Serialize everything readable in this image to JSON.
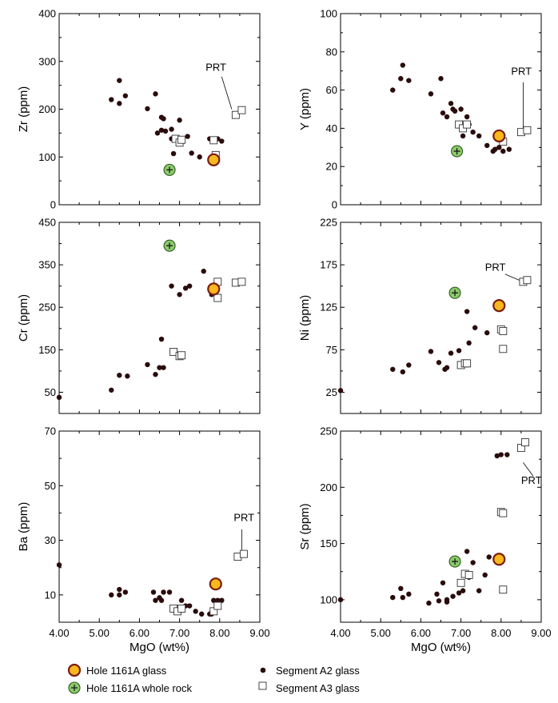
{
  "legend": [
    {
      "key": "glass",
      "label": "Hole 1161A glass"
    },
    {
      "key": "whole_rock",
      "label": "Hole 1161A whole rock"
    },
    {
      "key": "a2",
      "label": "Segment A2 glass"
    },
    {
      "key": "a3",
      "label": "Segment A3 glass"
    }
  ],
  "colors": {
    "glass_fill": "#f9b81b",
    "glass_stroke": "#7a1d0e",
    "whole_rock_fill": "#8ccb6a",
    "whole_rock_stroke": "#2d5a1e",
    "a2": "#2a0b0b",
    "a3": "#ffffff"
  },
  "chart_data": [
    {
      "type": "scatter",
      "xlabel": "",
      "ylabel": "Zr (ppm)",
      "xlim": [
        4.0,
        9.0
      ],
      "ylim": [
        0,
        400
      ],
      "xticks": [],
      "yticks": [
        "0",
        "100",
        "200",
        "300",
        "400"
      ],
      "annotation": {
        "text": "PRT",
        "x": 7.65,
        "y": 280,
        "line": [
          [
            8.05,
            268
          ],
          [
            8.3,
            200
          ]
        ]
      },
      "series": [
        {
          "key": "a2",
          "points": [
            [
              5.3,
              220
            ],
            [
              5.5,
              260
            ],
            [
              5.5,
              212
            ],
            [
              5.65,
              228
            ],
            [
              6.2,
              201
            ],
            [
              6.4,
              232
            ],
            [
              6.45,
              150
            ],
            [
              6.55,
              183
            ],
            [
              6.6,
              180
            ],
            [
              6.55,
              156
            ],
            [
              6.65,
              154
            ],
            [
              6.8,
              158
            ],
            [
              6.8,
              138
            ],
            [
              6.85,
              107
            ],
            [
              7.0,
              177
            ],
            [
              7.05,
              132
            ],
            [
              7.2,
              143
            ],
            [
              7.3,
              108
            ],
            [
              7.5,
              100
            ],
            [
              7.75,
              138
            ],
            [
              7.95,
              138
            ],
            [
              8.05,
              133
            ]
          ]
        },
        {
          "key": "a3",
          "points": [
            [
              6.9,
              138
            ],
            [
              7.0,
              130
            ],
            [
              7.05,
              136
            ],
            [
              7.85,
              135
            ],
            [
              7.9,
              104
            ],
            [
              8.4,
              188
            ],
            [
              8.55,
              198
            ]
          ]
        },
        {
          "key": "glass",
          "points": [
            [
              7.85,
              94
            ]
          ]
        },
        {
          "key": "whole_rock",
          "points": [
            [
              6.75,
              73
            ]
          ]
        }
      ]
    },
    {
      "type": "scatter",
      "xlabel": "",
      "ylabel": "Y (ppm)",
      "xlim": [
        4.0,
        9.0
      ],
      "ylim": [
        0,
        100
      ],
      "xticks": [],
      "yticks": [
        "0",
        "20",
        "40",
        "60",
        "80",
        "100"
      ],
      "annotation": {
        "text": "PRT",
        "x": 8.25,
        "y": 68,
        "line": [
          [
            8.55,
            64
          ],
          [
            8.55,
            40
          ]
        ]
      },
      "series": [
        {
          "key": "a2",
          "points": [
            [
              5.3,
              60
            ],
            [
              5.5,
              66
            ],
            [
              5.55,
              73
            ],
            [
              5.7,
              65
            ],
            [
              6.25,
              58
            ],
            [
              6.5,
              66
            ],
            [
              6.55,
              48
            ],
            [
              6.65,
              46
            ],
            [
              6.75,
              53
            ],
            [
              6.8,
              50
            ],
            [
              6.85,
              49
            ],
            [
              6.95,
              42
            ],
            [
              7.0,
              50
            ],
            [
              7.05,
              36
            ],
            [
              7.15,
              46
            ],
            [
              7.2,
              42
            ],
            [
              7.3,
              38
            ],
            [
              7.45,
              36
            ],
            [
              7.65,
              31
            ],
            [
              7.8,
              28
            ],
            [
              7.85,
              29
            ],
            [
              7.95,
              30
            ],
            [
              8.05,
              28
            ],
            [
              8.2,
              29
            ]
          ]
        },
        {
          "key": "a3",
          "points": [
            [
              6.95,
              42
            ],
            [
              7.05,
              40
            ],
            [
              7.15,
              42
            ],
            [
              8.05,
              33
            ],
            [
              8.5,
              38
            ],
            [
              8.65,
              39
            ]
          ]
        },
        {
          "key": "glass",
          "points": [
            [
              7.95,
              36
            ]
          ]
        },
        {
          "key": "whole_rock",
          "points": [
            [
              6.9,
              28
            ]
          ]
        }
      ]
    },
    {
      "type": "scatter",
      "xlabel": "",
      "ylabel": "Cr (ppm)",
      "xlim": [
        4.0,
        9.0
      ],
      "ylim": [
        0,
        450
      ],
      "xticks": [],
      "yticks": [
        "50",
        "150",
        "250",
        "350",
        "450"
      ],
      "series": [
        {
          "key": "a2",
          "points": [
            [
              4.0,
              38
            ],
            [
              5.3,
              55
            ],
            [
              5.5,
              90
            ],
            [
              5.7,
              88
            ],
            [
              6.2,
              115
            ],
            [
              6.4,
              92
            ],
            [
              6.5,
              108
            ],
            [
              6.6,
              108
            ],
            [
              6.55,
              175
            ],
            [
              6.8,
              300
            ],
            [
              7.0,
              280
            ],
            [
              7.15,
              295
            ],
            [
              7.25,
              300
            ],
            [
              7.6,
              335
            ],
            [
              7.8,
              280
            ]
          ]
        },
        {
          "key": "a3",
          "points": [
            [
              6.85,
              145
            ],
            [
              7.0,
              135
            ],
            [
              7.05,
              137
            ],
            [
              7.95,
              310
            ],
            [
              7.95,
              272
            ],
            [
              8.4,
              308
            ],
            [
              8.55,
              310
            ]
          ]
        },
        {
          "key": "glass",
          "points": [
            [
              7.85,
              293
            ]
          ]
        },
        {
          "key": "whole_rock",
          "points": [
            [
              6.75,
              395
            ]
          ]
        }
      ]
    },
    {
      "type": "scatter",
      "xlabel": "",
      "ylabel": "Ni (ppm)",
      "xlim": [
        4.0,
        9.0
      ],
      "ylim": [
        0,
        225
      ],
      "xticks": [],
      "yticks": [
        "25",
        "75",
        "125",
        "175",
        "225"
      ],
      "annotation": {
        "text": "PRT",
        "x": 7.6,
        "y": 168,
        "line": [
          [
            8.1,
            164
          ],
          [
            8.55,
            155
          ]
        ]
      },
      "series": [
        {
          "key": "a2",
          "points": [
            [
              4.0,
              27
            ],
            [
              5.3,
              52
            ],
            [
              5.55,
              49
            ],
            [
              5.7,
              57
            ],
            [
              6.25,
              73
            ],
            [
              6.45,
              60
            ],
            [
              6.6,
              52
            ],
            [
              6.65,
              54
            ],
            [
              6.75,
              71
            ],
            [
              6.95,
              74
            ],
            [
              7.15,
              120
            ],
            [
              7.2,
              83
            ],
            [
              7.35,
              101
            ],
            [
              7.65,
              95
            ]
          ]
        },
        {
          "key": "a3",
          "points": [
            [
              7.0,
              57
            ],
            [
              7.1,
              59
            ],
            [
              7.15,
              59
            ],
            [
              8.0,
              99
            ],
            [
              8.05,
              97
            ],
            [
              8.05,
              76
            ],
            [
              8.55,
              155
            ],
            [
              8.65,
              157
            ]
          ]
        },
        {
          "key": "glass",
          "points": [
            [
              7.95,
              127
            ]
          ]
        },
        {
          "key": "whole_rock",
          "points": [
            [
              6.85,
              142
            ]
          ]
        }
      ]
    },
    {
      "type": "scatter",
      "xlabel": "MgO (wt%)",
      "ylabel": "Ba (ppm)",
      "xlim": [
        4.0,
        9.0
      ],
      "ylim": [
        0,
        70
      ],
      "xticks": [
        "4.00",
        "5.00",
        "6.00",
        "7.00",
        "8.00",
        "9.00"
      ],
      "yticks": [
        "10",
        "30",
        "50",
        "70"
      ],
      "annotation": {
        "text": "PRT",
        "x": 8.35,
        "y": 37,
        "line": [
          [
            8.55,
            34
          ],
          [
            8.55,
            26
          ]
        ]
      },
      "series": [
        {
          "key": "a2",
          "points": [
            [
              4.0,
              21
            ],
            [
              5.3,
              10
            ],
            [
              5.5,
              12
            ],
            [
              5.5,
              10
            ],
            [
              5.65,
              11
            ],
            [
              6.35,
              11
            ],
            [
              6.4,
              8
            ],
            [
              6.5,
              9
            ],
            [
              6.6,
              11
            ],
            [
              6.55,
              8
            ],
            [
              6.75,
              11
            ],
            [
              6.9,
              5
            ],
            [
              7.05,
              8
            ],
            [
              7.15,
              6
            ],
            [
              7.25,
              6
            ],
            [
              7.4,
              4
            ],
            [
              7.55,
              3
            ],
            [
              7.75,
              3
            ],
            [
              7.8,
              3
            ],
            [
              7.85,
              8
            ],
            [
              7.95,
              8
            ],
            [
              8.05,
              8
            ]
          ]
        },
        {
          "key": "a3",
          "points": [
            [
              6.85,
              5
            ],
            [
              6.95,
              4
            ],
            [
              7.05,
              5
            ],
            [
              7.85,
              4
            ],
            [
              7.95,
              6
            ],
            [
              8.45,
              24
            ],
            [
              8.6,
              25
            ]
          ]
        },
        {
          "key": "glass",
          "points": [
            [
              7.9,
              14
            ]
          ]
        },
        {
          "key": "whole_rock",
          "points": []
        }
      ]
    },
    {
      "type": "scatter",
      "xlabel": "MgO (wt%)",
      "ylabel": "Sr (ppm)",
      "xlim": [
        4.0,
        9.0
      ],
      "ylim": [
        80,
        250
      ],
      "xticks": [
        "4.00",
        "5.00",
        "6.00",
        "7.00",
        "8.00",
        "9.00"
      ],
      "yticks": [
        "100",
        "150",
        "200",
        "250"
      ],
      "annotation": {
        "text": "PRT",
        "x": 8.5,
        "y": 203,
        "line": [
          [
            8.55,
            222
          ],
          [
            8.8,
            210
          ]
        ]
      },
      "series": [
        {
          "key": "a2",
          "points": [
            [
              4.0,
              100
            ],
            [
              5.3,
              102
            ],
            [
              5.5,
              110
            ],
            [
              5.55,
              102
            ],
            [
              5.7,
              105
            ],
            [
              6.2,
              97
            ],
            [
              6.4,
              105
            ],
            [
              6.45,
              99
            ],
            [
              6.55,
              115
            ],
            [
              6.65,
              100
            ],
            [
              6.65,
              98
            ],
            [
              6.8,
              103
            ],
            [
              6.95,
              106
            ],
            [
              7.05,
              108
            ],
            [
              7.15,
              143
            ],
            [
              7.2,
              120
            ],
            [
              7.3,
              133
            ],
            [
              7.45,
              108
            ],
            [
              7.6,
              122
            ],
            [
              7.7,
              138
            ],
            [
              7.9,
              228
            ],
            [
              8.0,
              229
            ],
            [
              8.15,
              229
            ]
          ]
        },
        {
          "key": "a3",
          "points": [
            [
              7.0,
              115
            ],
            [
              7.1,
              123
            ],
            [
              7.2,
              122
            ],
            [
              8.0,
              178
            ],
            [
              8.05,
              177
            ],
            [
              8.05,
              109
            ],
            [
              8.5,
              235
            ],
            [
              8.6,
              240
            ]
          ]
        },
        {
          "key": "glass",
          "points": [
            [
              7.95,
              136
            ]
          ]
        },
        {
          "key": "whole_rock",
          "points": [
            [
              6.85,
              134
            ]
          ]
        }
      ]
    }
  ]
}
